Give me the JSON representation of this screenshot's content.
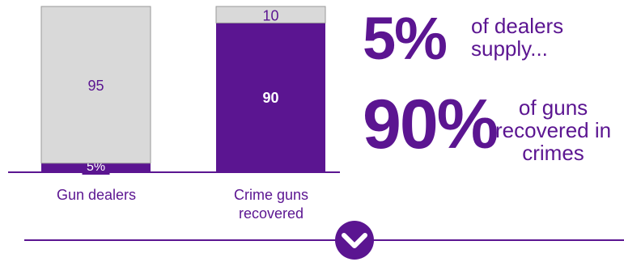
{
  "chart_data": {
    "type": "bar",
    "stacked": true,
    "categories": [
      "Gun dealers",
      "Crime guns recovered"
    ],
    "series": [
      {
        "values": [
          5,
          90
        ],
        "labels": [
          "5%",
          "90"
        ],
        "color": "#5b1591"
      },
      {
        "values": [
          95,
          10
        ],
        "labels": [
          "95",
          "10"
        ],
        "color": "#d9d9d9"
      }
    ],
    "ylim": [
      0,
      100
    ],
    "grid": false,
    "legend": "none"
  },
  "category_labels": [
    "Gun dealers",
    "Crime guns\nrecovered"
  ],
  "stats": [
    {
      "value": "5%",
      "text": "of dealers\nsupply..."
    },
    {
      "value": "90%",
      "text": "of guns\nrecovered in\ncrimes"
    }
  ],
  "scroll_icon": "chevron-down-icon",
  "colors": {
    "accent": "#5b1591",
    "muted": "#d9d9d9",
    "outline": "#999999"
  }
}
